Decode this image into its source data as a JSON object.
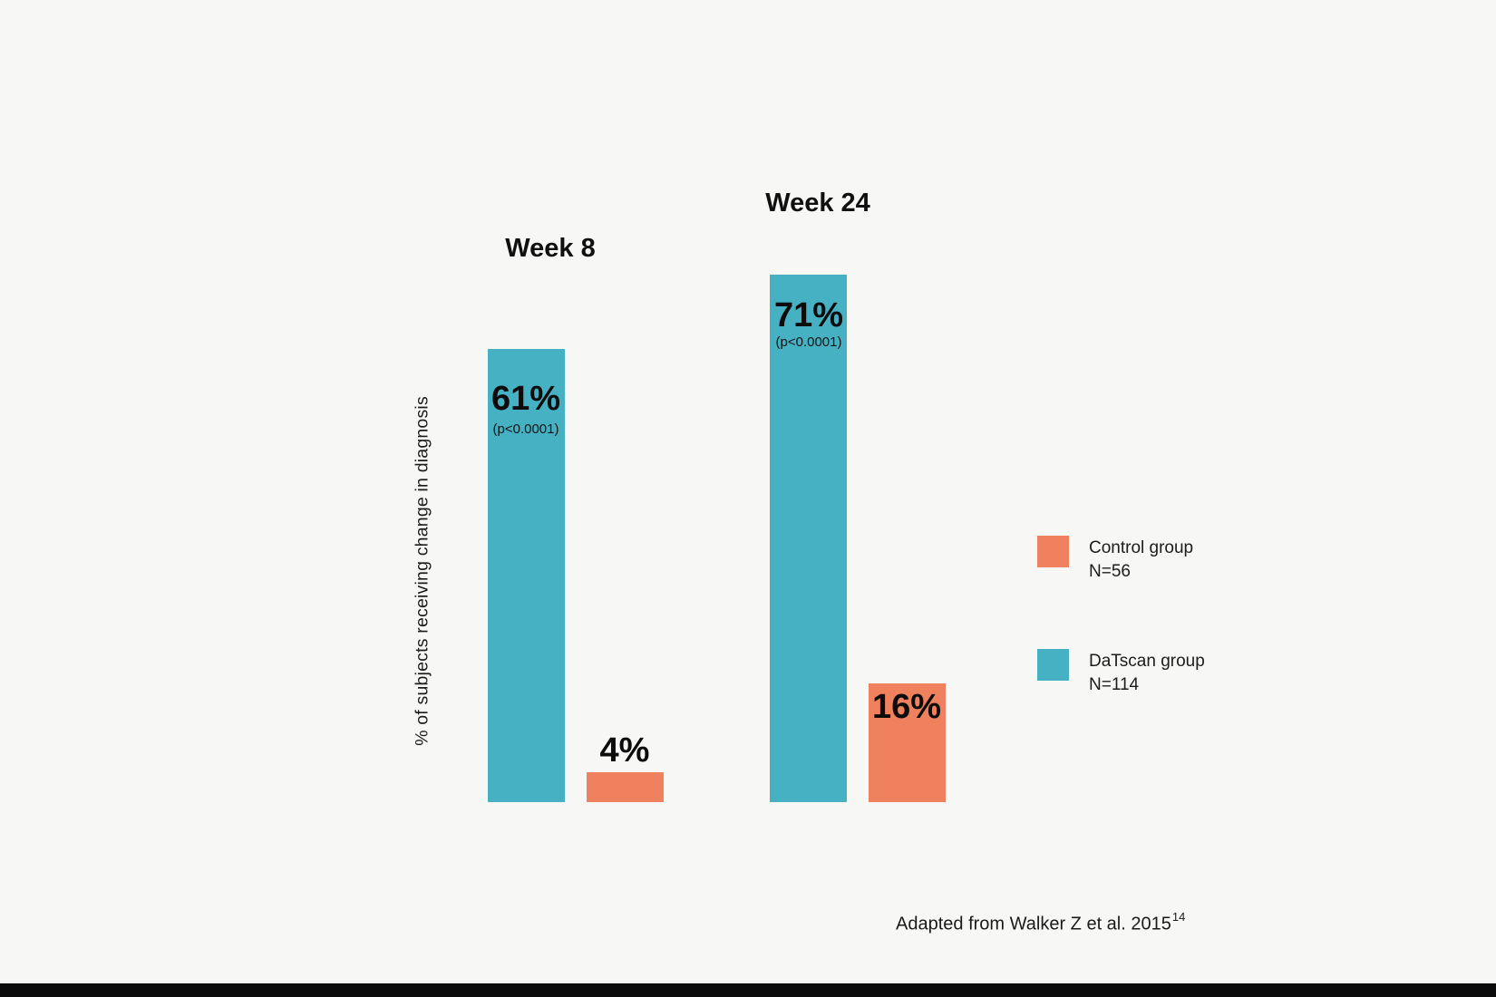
{
  "chart_data": {
    "type": "bar",
    "title": "",
    "ylabel": "% of subjects receiving change in diagnosis",
    "categories": [
      "Week 8",
      "Week 24"
    ],
    "series": [
      {
        "name": "DaTscan group",
        "n_label": "N=114",
        "color": "#46B1C3",
        "values": [
          61,
          71
        ],
        "annotations": [
          "(p<0.0001)",
          "(p<0.0001)"
        ]
      },
      {
        "name": "Control group",
        "n_label": "N=56",
        "color": "#F0815F",
        "values": [
          4,
          16
        ],
        "annotations": [
          "",
          ""
        ]
      }
    ],
    "value_suffix": "%",
    "ylim": [
      0,
      100
    ],
    "grid": false,
    "legend_position": "right",
    "background": "#F7F7F5"
  },
  "footer": {
    "source_text": "Adapted from Walker Z et al. 2015",
    "reference_superscript": "14"
  }
}
